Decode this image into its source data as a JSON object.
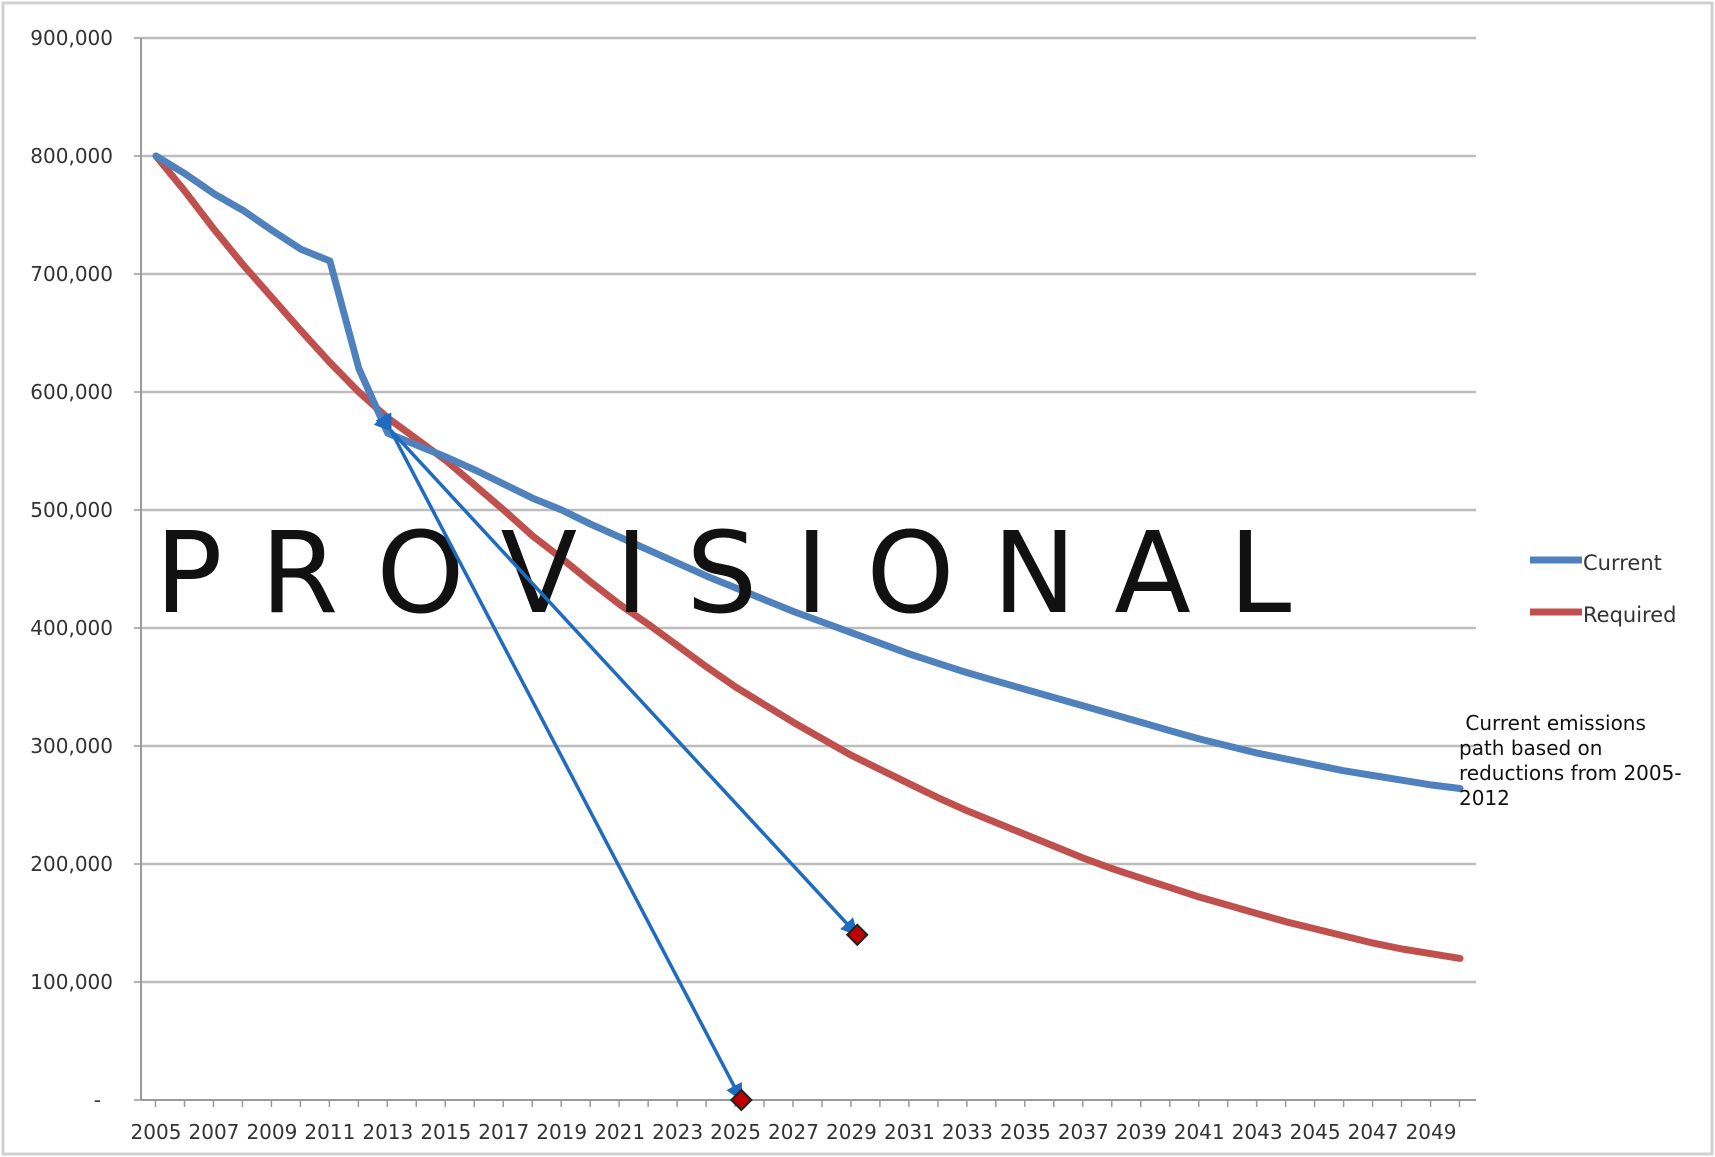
{
  "chart_data": {
    "type": "line",
    "title": "",
    "xlabel": "",
    "ylabel": "",
    "x_start": 2005,
    "x_end": 2050,
    "x_tick_labels": [
      "2005",
      "2007",
      "2009",
      "2011",
      "2013",
      "2015",
      "2017",
      "2019",
      "2021",
      "2023",
      "2025",
      "2027",
      "2029",
      "2031",
      "2033",
      "2035",
      "2037",
      "2039",
      "2041",
      "2043",
      "2045",
      "2047",
      "2049"
    ],
    "ylim": [
      0,
      900000
    ],
    "y_ticks": [
      {
        "value": 0,
        "label": "-"
      },
      {
        "value": 100000,
        "label": "100,000"
      },
      {
        "value": 200000,
        "label": "200,000"
      },
      {
        "value": 300000,
        "label": "300,000"
      },
      {
        "value": 400000,
        "label": "400,000"
      },
      {
        "value": 500000,
        "label": "500,000"
      },
      {
        "value": 600000,
        "label": "600,000"
      },
      {
        "value": 700000,
        "label": "700,000"
      },
      {
        "value": 800000,
        "label": "800,000"
      },
      {
        "value": 900000,
        "label": "900,000"
      }
    ],
    "grid": true,
    "legend_position": "right",
    "series": [
      {
        "name": "Current",
        "color": "#4f81bd",
        "points": [
          [
            2005,
            800000
          ],
          [
            2006,
            785000
          ],
          [
            2007,
            768000
          ],
          [
            2008,
            754000
          ],
          [
            2009,
            737000
          ],
          [
            2010,
            721000
          ],
          [
            2011,
            711000
          ],
          [
            2012,
            620000
          ],
          [
            2013,
            565000
          ],
          [
            2014,
            555000
          ],
          [
            2015,
            545000
          ],
          [
            2016,
            534000
          ],
          [
            2017,
            522000
          ],
          [
            2018,
            510000
          ],
          [
            2019,
            500000
          ],
          [
            2020,
            488000
          ],
          [
            2021,
            477000
          ],
          [
            2022,
            466000
          ],
          [
            2023,
            455000
          ],
          [
            2024,
            444000
          ],
          [
            2025,
            434000
          ],
          [
            2026,
            424000
          ],
          [
            2027,
            414000
          ],
          [
            2028,
            405000
          ],
          [
            2029,
            396000
          ],
          [
            2030,
            387000
          ],
          [
            2031,
            378000
          ],
          [
            2032,
            370000
          ],
          [
            2033,
            362000
          ],
          [
            2034,
            355000
          ],
          [
            2035,
            348000
          ],
          [
            2036,
            341000
          ],
          [
            2037,
            334000
          ],
          [
            2038,
            327000
          ],
          [
            2039,
            320000
          ],
          [
            2040,
            313000
          ],
          [
            2041,
            306000
          ],
          [
            2042,
            300000
          ],
          [
            2043,
            294000
          ],
          [
            2044,
            289000
          ],
          [
            2045,
            284000
          ],
          [
            2046,
            279000
          ],
          [
            2047,
            275000
          ],
          [
            2048,
            271000
          ],
          [
            2049,
            267000
          ],
          [
            2050,
            264000
          ]
        ]
      },
      {
        "name": "Required",
        "color": "#c0504d",
        "points": [
          [
            2005,
            800000
          ],
          [
            2006,
            770000
          ],
          [
            2007,
            738000
          ],
          [
            2008,
            708000
          ],
          [
            2009,
            680000
          ],
          [
            2010,
            652000
          ],
          [
            2011,
            625000
          ],
          [
            2012,
            600000
          ],
          [
            2013,
            578000
          ],
          [
            2014,
            560000
          ],
          [
            2015,
            542000
          ],
          [
            2016,
            521000
          ],
          [
            2017,
            500000
          ],
          [
            2018,
            478000
          ],
          [
            2019,
            459000
          ],
          [
            2020,
            439000
          ],
          [
            2021,
            420000
          ],
          [
            2022,
            403000
          ],
          [
            2023,
            385000
          ],
          [
            2024,
            367000
          ],
          [
            2025,
            350000
          ],
          [
            2026,
            335000
          ],
          [
            2027,
            320000
          ],
          [
            2028,
            306000
          ],
          [
            2029,
            292000
          ],
          [
            2030,
            280000
          ],
          [
            2031,
            268000
          ],
          [
            2032,
            256000
          ],
          [
            2033,
            245000
          ],
          [
            2034,
            235000
          ],
          [
            2035,
            225000
          ],
          [
            2036,
            215000
          ],
          [
            2037,
            205000
          ],
          [
            2038,
            196000
          ],
          [
            2039,
            188000
          ],
          [
            2040,
            180000
          ],
          [
            2041,
            172000
          ],
          [
            2042,
            165000
          ],
          [
            2043,
            158000
          ],
          [
            2044,
            151000
          ],
          [
            2045,
            145000
          ],
          [
            2046,
            139000
          ],
          [
            2047,
            133000
          ],
          [
            2048,
            128000
          ],
          [
            2049,
            124000
          ],
          [
            2050,
            120000
          ]
        ]
      }
    ],
    "arrows": [
      {
        "from": [
          2013,
          570000
        ],
        "to": [
          2025.2,
          0
        ],
        "color": "#1f6bbf"
      },
      {
        "from": [
          2013,
          570000
        ],
        "to": [
          2029.2,
          140000
        ],
        "color": "#1f6bbf"
      }
    ],
    "markers": [
      {
        "x": 2025.2,
        "y": 0,
        "color": "#c00000"
      },
      {
        "x": 2029.2,
        "y": 140000,
        "color": "#c00000"
      }
    ],
    "annotations": [
      {
        "lines": [
          " Current emissions",
          "path based on",
          "reductions from 2005-",
          "2012"
        ]
      }
    ],
    "watermark": "PROVISIONAL"
  }
}
